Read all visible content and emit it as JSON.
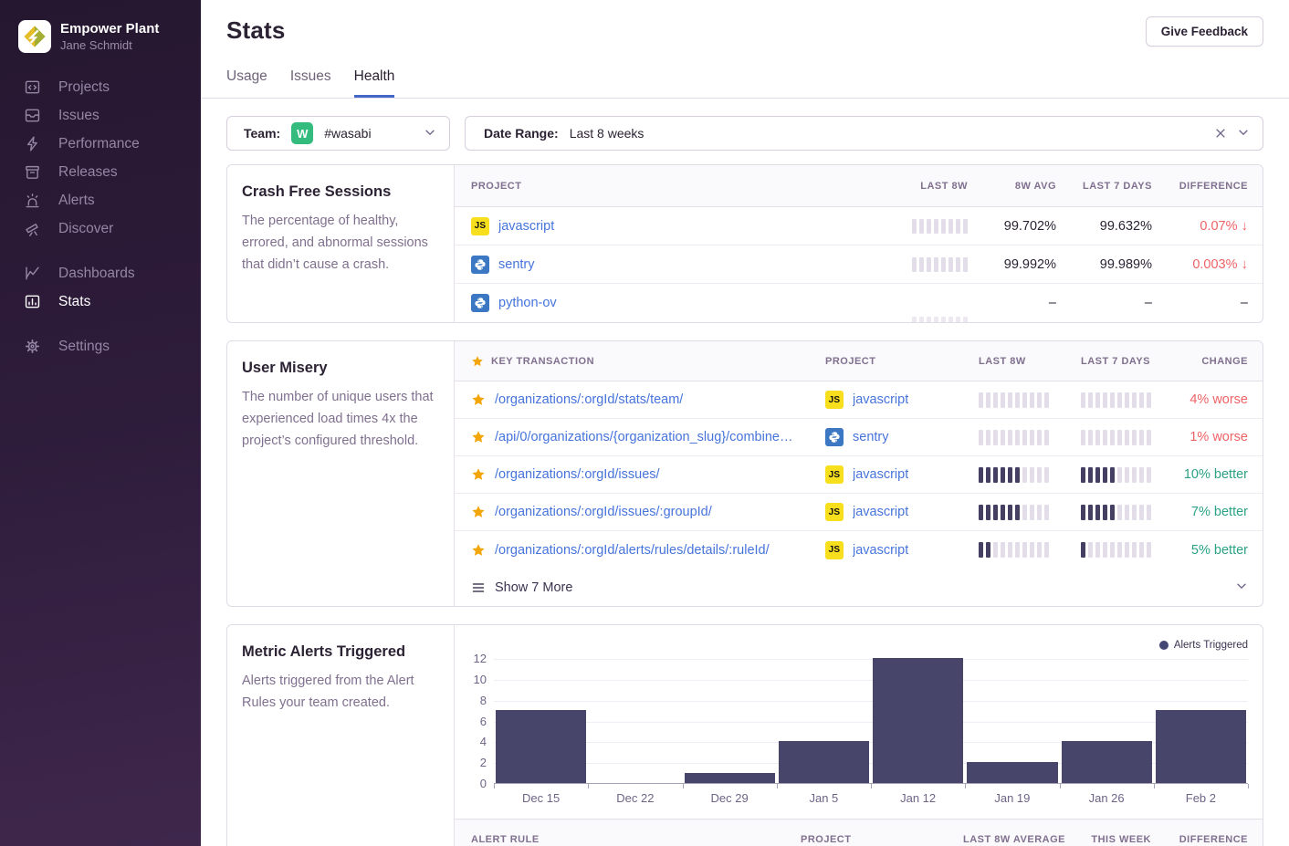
{
  "sidebar": {
    "org_name": "Empower Plant",
    "user_name": "Jane Schmidt",
    "groups": [
      {
        "items": [
          {
            "key": "projects",
            "label": "Projects"
          },
          {
            "key": "issues",
            "label": "Issues"
          },
          {
            "key": "performance",
            "label": "Performance"
          },
          {
            "key": "releases",
            "label": "Releases"
          },
          {
            "key": "alerts",
            "label": "Alerts"
          },
          {
            "key": "discover",
            "label": "Discover"
          }
        ]
      },
      {
        "items": [
          {
            "key": "dashboards",
            "label": "Dashboards"
          },
          {
            "key": "stats",
            "label": "Stats",
            "active": true
          }
        ]
      },
      {
        "items": [
          {
            "key": "settings",
            "label": "Settings"
          }
        ]
      }
    ]
  },
  "header": {
    "title": "Stats",
    "feedback_button": "Give Feedback",
    "tabs": [
      {
        "label": "Usage",
        "active": false
      },
      {
        "label": "Issues",
        "active": false
      },
      {
        "label": "Health",
        "active": true
      }
    ]
  },
  "filters": {
    "team_label": "Team:",
    "team_avatar_letter": "W",
    "team_value": "#wasabi",
    "date_label": "Date Range:",
    "date_value": "Last 8 weeks"
  },
  "crash_free": {
    "title": "Crash Free Sessions",
    "description": "The percentage of healthy, errored, and abnormal sessions that didn’t cause a crash.",
    "columns": [
      "PROJECT",
      "LAST 8W",
      "8W AVG",
      "LAST 7 DAYS",
      "DIFFERENCE"
    ],
    "rows": [
      {
        "project": "javascript",
        "platform": "javascript",
        "spark_dark": 0,
        "spark_total": 8,
        "avg_8w": "99.702%",
        "last_7d": "99.632%",
        "difference": "0.07%",
        "trend": "down"
      },
      {
        "project": "sentry",
        "platform": "python",
        "spark_dark": 0,
        "spark_total": 8,
        "avg_8w": "99.992%",
        "last_7d": "99.989%",
        "difference": "0.003%",
        "trend": "down"
      },
      {
        "project": "python-ov",
        "platform": "python",
        "spark_dark": 0,
        "spark_total": 8,
        "spark_style": "low",
        "avg_8w": "–",
        "last_7d": "–",
        "difference": "–",
        "trend": "none"
      }
    ]
  },
  "user_misery": {
    "title": "User Misery",
    "description": "The number of unique users that experienced load times 4x the project’s configured threshold.",
    "columns": [
      "KEY TRANSACTION",
      "PROJECT",
      "LAST 8W",
      "LAST 7 DAYS",
      "CHANGE"
    ],
    "rows": [
      {
        "transaction": "/organizations/:orgId/stats/team/",
        "project": "javascript",
        "platform": "javascript",
        "bars_8w": 0,
        "bars_7d": 0,
        "bars_total": 10,
        "change": "4% worse",
        "direction": "worse"
      },
      {
        "transaction": "/api/0/organizations/{organization_slug}/combine…",
        "project": "sentry",
        "platform": "python",
        "bars_8w": 0,
        "bars_7d": 0,
        "bars_total": 10,
        "change": "1% worse",
        "direction": "worse"
      },
      {
        "transaction": "/organizations/:orgId/issues/",
        "project": "javascript",
        "platform": "javascript",
        "bars_8w": 6,
        "bars_7d": 5,
        "bars_total": 10,
        "change": "10% better",
        "direction": "better"
      },
      {
        "transaction": "/organizations/:orgId/issues/:groupId/",
        "project": "javascript",
        "platform": "javascript",
        "bars_8w": 6,
        "bars_7d": 5,
        "bars_total": 10,
        "change": "7% better",
        "direction": "better"
      },
      {
        "transaction": "/organizations/:orgId/alerts/rules/details/:ruleId/",
        "project": "javascript",
        "platform": "javascript",
        "bars_8w": 2,
        "bars_7d": 1,
        "bars_total": 10,
        "change": "5% better",
        "direction": "better"
      }
    ],
    "show_more_label": "Show 7 More"
  },
  "metric_alerts": {
    "title": "Metric Alerts Triggered",
    "description": "Alerts triggered from the Alert Rules your team created."
  },
  "chart_data": {
    "type": "bar",
    "title": "Metric Alerts Triggered",
    "categories": [
      "Dec 15",
      "Dec 22",
      "Dec 29",
      "Jan 5",
      "Jan 12",
      "Jan 19",
      "Jan 26",
      "Feb 2"
    ],
    "values": [
      7,
      0,
      1,
      4,
      12,
      2,
      4,
      7
    ],
    "legend": "Alerts Triggered",
    "ylim": [
      0,
      12
    ],
    "yticks": [
      0,
      2,
      4,
      6,
      8,
      10,
      12
    ],
    "grid": true,
    "legend_position": "top-right",
    "bar_color": "#474569"
  },
  "alert_rules_table": {
    "columns": [
      "ALERT RULE",
      "PROJECT",
      "LAST 8W AVERAGE",
      "THIS WEEK",
      "DIFFERENCE"
    ]
  }
}
